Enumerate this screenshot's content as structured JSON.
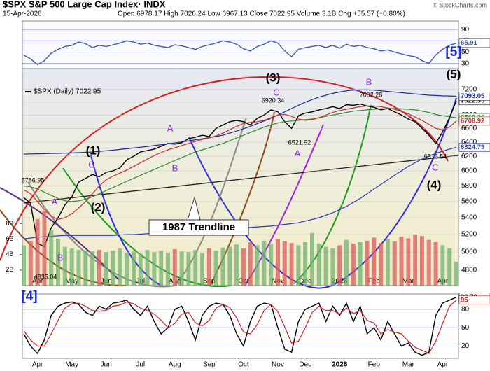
{
  "header": {
    "title": "$SPX S&P 500 Large Cap Index· INDX",
    "date": "15-Apr-2026",
    "quote": "Open 6978.17   High 7026.24   Low 6967.13   Close 7022.95   Volume 3.1B   Chg +55.57 (+0.80%)",
    "brand": "© StockCharts.com"
  },
  "chart_data": [
    {
      "type": "line",
      "ylim": [
        21,
        105
      ],
      "yticks": [
        30,
        50,
        70,
        90
      ],
      "grid": true,
      "series": [
        {
          "color": "#4455aa",
          "values": [
            45,
            38,
            28,
            35,
            48,
            55,
            60,
            62,
            68,
            65,
            58,
            62,
            60,
            63,
            66,
            70,
            68,
            64,
            66,
            62,
            60,
            58,
            63,
            61,
            58,
            55,
            60,
            63,
            66,
            70,
            68,
            64,
            56,
            52,
            60,
            64,
            70,
            66,
            52,
            42,
            55,
            58,
            60,
            62,
            58,
            62,
            57,
            64,
            60,
            62,
            58,
            56,
            52,
            54,
            50,
            47,
            44,
            42,
            35,
            30,
            45,
            55,
            62,
            65.91
          ]
        }
      ]
    },
    {
      "type": "line",
      "log": true,
      "ylim": [
        4637,
        7547
      ],
      "yticks": [
        4800,
        5000,
        5200,
        5400,
        5600,
        5800,
        6000,
        6200,
        6400,
        6600,
        6800,
        7000,
        7200
      ],
      "grid": true,
      "y2lim": [
        0,
        28
      ],
      "y2ticks": [
        {
          "value": 2,
          "label": "2B"
        },
        {
          "value": 4,
          "label": "4B"
        },
        {
          "value": 6,
          "label": "6B"
        },
        {
          "value": 8,
          "label": "8B"
        }
      ],
      "categories": [
        null,
        null,
        "Apr",
        null,
        null,
        null,
        null,
        "May",
        null,
        null,
        null,
        null,
        "Jun",
        null,
        null,
        null,
        null,
        "Jul",
        null,
        null,
        null,
        null,
        "Aug",
        null,
        null,
        null,
        null,
        "Sep",
        null,
        null,
        null,
        null,
        "Oct",
        null,
        null,
        null,
        null,
        "Nov",
        null,
        null,
        null,
        "Dec",
        null,
        null,
        null,
        null,
        "2026",
        null,
        null,
        null,
        null,
        "Feb",
        null,
        null,
        null,
        null,
        "Mar",
        null,
        null,
        null,
        null,
        "Apr",
        null,
        null
      ],
      "series": [
        {
          "name": "$SPX (Daily) 7022.95",
          "color": "#000000",
          "values": [
            5650,
            5580,
            5100,
            5060,
            5280,
            5400,
            5560,
            5660,
            5850,
            5900,
            5950,
            5920,
            5980,
            6000,
            6040,
            6150,
            6200,
            6260,
            6280,
            6300,
            6340,
            6380,
            6370,
            6390,
            6450,
            6470,
            6500,
            6480,
            6600,
            6650,
            6700,
            6720,
            6700,
            6650,
            6750,
            6800,
            6880,
            6850,
            6700,
            6600,
            6790,
            6830,
            6850,
            6880,
            6900,
            6930,
            6900,
            6960,
            6950,
            6970,
            6940,
            6920,
            6880,
            6900,
            6850,
            6800,
            6740,
            6700,
            6600,
            6500,
            6380,
            6550,
            6760,
            7022.95
          ]
        },
        {
          "color": "#1c2a9c",
          "values": [
            6230,
            6232,
            6234,
            6236,
            6238,
            6240,
            6243,
            6246,
            6250,
            6255,
            6260,
            6268,
            6276,
            6285,
            6295,
            6305,
            6316,
            6327,
            6338,
            6350,
            6362,
            6375,
            6388,
            6402,
            6417,
            6432,
            6448,
            6464,
            6481,
            6500,
            6530,
            6560,
            6595,
            6630,
            6670,
            6710,
            6750,
            6800,
            6850,
            6900,
            6950,
            7000,
            7040,
            7080,
            7110,
            7140,
            7160,
            7180,
            7190,
            7195,
            7195,
            7190,
            7180,
            7170,
            7160,
            7150,
            7140,
            7130,
            7120,
            7110,
            7105,
            7100,
            7097,
            7093.05
          ]
        },
        {
          "color": "#2e8b2e",
          "values": [
            5800,
            5790,
            5760,
            5720,
            5680,
            5640,
            5610,
            5600,
            5610,
            5630,
            5660,
            5700,
            5740,
            5780,
            5820,
            5860,
            5900,
            5940,
            5980,
            6020,
            6060,
            6100,
            6140,
            6180,
            6220,
            6260,
            6290,
            6320,
            6350,
            6380,
            6420,
            6460,
            6500,
            6540,
            6580,
            6620,
            6650,
            6680,
            6700,
            6710,
            6720,
            6730,
            6740,
            6760,
            6780,
            6800,
            6820,
            6840,
            6860,
            6870,
            6880,
            6890,
            6895,
            6900,
            6900,
            6895,
            6890,
            6880,
            6860,
            6840,
            6810,
            6790,
            6775,
            6760.26
          ]
        },
        {
          "color": "#c03030",
          "values": [
            5750,
            5700,
            5600,
            5500,
            5420,
            5380,
            5400,
            5450,
            5520,
            5600,
            5700,
            5800,
            5880,
            5930,
            5970,
            6010,
            6060,
            6110,
            6160,
            6210,
            6250,
            6290,
            6320,
            6350,
            6380,
            6410,
            6440,
            6460,
            6490,
            6530,
            6580,
            6630,
            6670,
            6690,
            6700,
            6720,
            6760,
            6800,
            6810,
            6780,
            6740,
            6720,
            6730,
            6760,
            6800,
            6840,
            6870,
            6890,
            6910,
            6930,
            6940,
            6940,
            6930,
            6910,
            6890,
            6860,
            6820,
            6770,
            6720,
            6660,
            6600,
            6580,
            6620,
            6708.92
          ]
        },
        {
          "color": "#2a3ab8",
          "values": [
            5150,
            5160,
            5170,
            5175,
            5180,
            5185,
            5190,
            5190,
            5190,
            5190,
            5190,
            5190,
            5190,
            5190,
            5195,
            5200,
            5200,
            5205,
            5210,
            5215,
            5220,
            5225,
            5230,
            5235,
            5240,
            5245,
            5250,
            5255,
            5260,
            5265,
            5270,
            5275,
            5280,
            5285,
            5290,
            5295,
            5300,
            5310,
            5320,
            5330,
            5340,
            5360,
            5380,
            5400,
            5430,
            5460,
            5500,
            5540,
            5590,
            5640,
            5700,
            5760,
            5820,
            5880,
            5940,
            6000,
            6060,
            6110,
            6160,
            6200,
            6240,
            6270,
            6300,
            6324.79
          ]
        },
        {
          "type": "bar",
          "axis": "y2",
          "color": "#6fb36f",
          "down_color": "#d95a5a",
          "values": [
            5.2,
            5.8,
            8.6,
            9.6,
            7.2,
            6.0,
            5.0,
            4.8,
            4.6,
            4.5,
            4.4,
            4.6,
            4.3,
            4.5,
            4.8,
            4.2,
            4.4,
            4.1,
            4.6,
            4.3,
            4.5,
            4.2,
            4.7,
            4.4,
            4.3,
            4.6,
            4.2,
            4.8,
            4.5,
            4.9,
            5.0,
            5.3,
            4.8,
            5.6,
            5.2,
            5.8,
            5.4,
            6.0,
            5.7,
            5.5,
            5.2,
            5.6,
            6.8,
            5.4,
            5.0,
            4.8,
            5.2,
            5.9,
            5.4,
            5.6,
            5.8,
            6.2,
            5.5,
            6.0,
            5.7,
            6.3,
            6.1,
            6.6,
            6.4,
            5.9,
            5.6,
            5.2,
            4.8,
            3.07
          ]
        }
      ],
      "annotations": [
        "(1)",
        "(2)",
        "(3)",
        "(4)",
        "(5)",
        "[5]",
        "[4]",
        "A",
        "B",
        "C",
        "A",
        "B",
        "C",
        "A",
        "B",
        "C",
        "1987 Trendline",
        "5786.95",
        "4835.04",
        "6920.34",
        "6521.92",
        "7002.28",
        "6316.54"
      ]
    },
    {
      "type": "line",
      "ylim": [
        0,
        105
      ],
      "yticks": [
        20,
        50,
        80
      ],
      "grid": true,
      "categories": [
        null,
        null,
        "Apr",
        null,
        null,
        null,
        null,
        "May",
        null,
        null,
        null,
        null,
        "Jun",
        null,
        null,
        null,
        null,
        "Jul",
        null,
        null,
        null,
        null,
        "Aug",
        null,
        null,
        null,
        null,
        "Sep",
        null,
        null,
        null,
        null,
        "Oct",
        null,
        null,
        null,
        null,
        "Nov",
        null,
        null,
        null,
        "Dec",
        null,
        null,
        null,
        null,
        "2026",
        null,
        null,
        null,
        null,
        "Feb",
        null,
        null,
        null,
        null,
        "Mar",
        null,
        null,
        null,
        null,
        "Apr",
        null,
        null
      ],
      "series": [
        {
          "color": "#000000",
          "values": [
            40,
            20,
            8,
            30,
            70,
            85,
            90,
            92,
            88,
            75,
            70,
            85,
            80,
            90,
            92,
            95,
            80,
            70,
            85,
            60,
            40,
            50,
            80,
            85,
            60,
            30,
            70,
            85,
            90,
            88,
            70,
            40,
            20,
            60,
            85,
            90,
            88,
            50,
            15,
            10,
            60,
            80,
            85,
            90,
            60,
            85,
            70,
            90,
            60,
            85,
            40,
            50,
            30,
            60,
            40,
            20,
            25,
            10,
            5,
            10,
            70,
            90,
            95,
            99.7
          ],
          "value_labels": [
            null,
            null,
            null,
            null,
            null,
            null,
            null,
            null,
            null,
            null,
            null,
            null,
            null,
            null,
            null,
            null,
            null,
            null,
            null,
            null,
            null,
            null,
            null,
            null,
            null,
            null,
            null,
            null,
            null,
            null,
            null,
            null,
            null,
            null,
            null,
            null,
            null,
            null,
            null,
            null,
            null,
            null,
            null,
            null,
            null,
            null,
            null,
            null,
            null,
            null,
            null,
            null,
            null,
            null,
            null,
            null,
            null,
            null,
            null,
            null,
            null,
            null,
            null,
            "99.70"
          ]
        },
        {
          "color": "#d02020",
          "values": [
            45,
            30,
            20,
            20,
            40,
            62,
            82,
            89,
            90,
            85,
            78,
            77,
            78,
            85,
            87,
            92,
            89,
            82,
            78,
            72,
            62,
            50,
            57,
            72,
            75,
            58,
            53,
            62,
            82,
            88,
            83,
            66,
            43,
            40,
            55,
            78,
            88,
            76,
            51,
            25,
            28,
            50,
            75,
            85,
            78,
            78,
            72,
            82,
            73,
            78,
            62,
            58,
            40,
            47,
            43,
            40,
            28,
            18,
            13,
            8,
            28,
            57,
            85,
            95
          ]
        }
      ]
    }
  ]
}
